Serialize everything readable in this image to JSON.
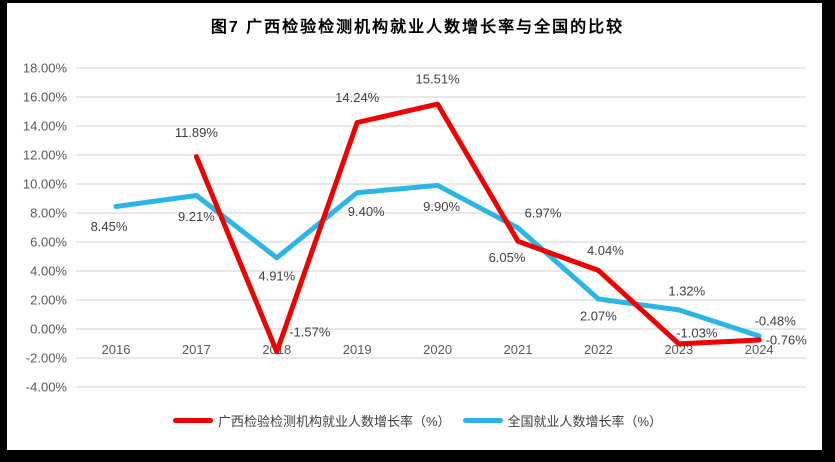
{
  "title": "图7 广西检验检测机构就业人数增长率与全国的比较",
  "colors": {
    "guangxi_red": "#f00000",
    "national_blue": "#29b5e8",
    "gridline": "#d9d9d9",
    "axis_text": "#595959",
    "data_label_text": "#404040",
    "title_text": "#000000",
    "frame_border": "#000000"
  },
  "chart_data": {
    "type": "line",
    "title": "图7 广西检验检测机构就业人数增长率与全国的比较",
    "x_categories": [
      "2016",
      "2017",
      "2018",
      "2019",
      "2020",
      "2021",
      "2022",
      "2023",
      "2024"
    ],
    "y_tick_labels": [
      "18.00%",
      "16.00%",
      "14.00%",
      "12.00%",
      "10.00%",
      "8.00%",
      "6.00%",
      "4.00%",
      "2.00%",
      "0.00%",
      "-2.00%",
      "-4.00%"
    ],
    "ylim": [
      -4,
      18
    ],
    "grid": true,
    "legend_position": "bottom",
    "series": [
      {
        "name": "广西检验检测机构就业人数增长率（%）",
        "color_key": "guangxi_red",
        "points": [
          {
            "x": "2017",
            "y": 11.89,
            "label": "11.89%",
            "dx": 0,
            "dy": -24
          },
          {
            "x": "2018",
            "y": -1.57,
            "label": "-1.57%",
            "dx": 33,
            "dy": -20
          },
          {
            "x": "2019",
            "y": 14.24,
            "label": "14.24%",
            "dx": 0,
            "dy": -25
          },
          {
            "x": "2020",
            "y": 15.51,
            "label": "15.51%",
            "dx": 0,
            "dy": -25
          },
          {
            "x": "2021",
            "y": 6.05,
            "label": "6.05%",
            "dx": -11,
            "dy": 16
          },
          {
            "x": "2022",
            "y": 4.04,
            "label": "4.04%",
            "dx": 7,
            "dy": -20
          },
          {
            "x": "2023",
            "y": -1.03,
            "label": "-1.03%",
            "dx": 18,
            "dy": -11
          },
          {
            "x": "2024",
            "y": -0.76,
            "label": "-0.76%",
            "dx": 27,
            "dy": 0
          }
        ]
      },
      {
        "name": "全国就业人数增长率（%）",
        "color_key": "national_blue",
        "points": [
          {
            "x": "2016",
            "y": 8.45,
            "label": "8.45%",
            "dx": -7,
            "dy": 20
          },
          {
            "x": "2017",
            "y": 9.21,
            "label": "9.21%",
            "dx": 0,
            "dy": 21
          },
          {
            "x": "2018",
            "y": 4.91,
            "label": "4.91%",
            "dx": 0,
            "dy": 18
          },
          {
            "x": "2019",
            "y": 9.4,
            "label": "9.40%",
            "dx": 9,
            "dy": 19
          },
          {
            "x": "2020",
            "y": 9.9,
            "label": "9.90%",
            "dx": 4,
            "dy": 21
          },
          {
            "x": "2021",
            "y": 6.97,
            "label": "6.97%",
            "dx": 25,
            "dy": -15
          },
          {
            "x": "2022",
            "y": 2.07,
            "label": "2.07%",
            "dx": 0,
            "dy": 17
          },
          {
            "x": "2023",
            "y": 1.32,
            "label": "1.32%",
            "dx": 8,
            "dy": -19
          },
          {
            "x": "2024",
            "y": -0.48,
            "label": "-0.48%",
            "dx": 16,
            "dy": -15
          }
        ]
      }
    ]
  }
}
